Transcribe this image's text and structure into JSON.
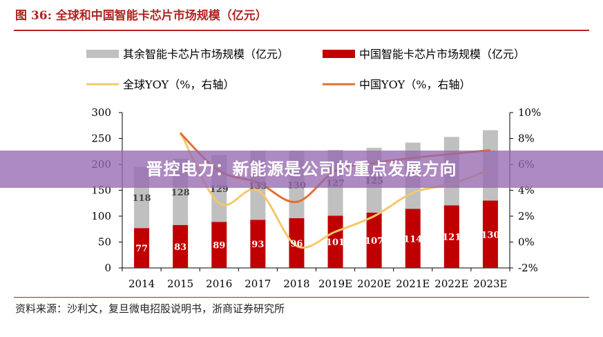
{
  "title": "图 36:  全球和中国智能卡芯片市场规模（亿元）",
  "source": "资料来源：沙利文，复旦微电招股说明书，浙商证券研究所",
  "banner": "晋控电力：新能源是公司的重点发展方向",
  "colors": {
    "title": "#b22222",
    "other_bar": "#c0c0c0",
    "china_bar": "#c00000",
    "global_yoy": "#f4c86a",
    "china_yoy": "#e0702c",
    "banner": "#9669af"
  },
  "chart_data": {
    "type": "bar",
    "stacked": true,
    "categories": [
      "2014",
      "2015",
      "2016",
      "2017",
      "2018",
      "2019E",
      "2020E",
      "2021E",
      "2022E",
      "2023E"
    ],
    "series": [
      {
        "name": "中国智能卡芯片市场规模（亿元）",
        "type": "bar",
        "axis": "left",
        "values": [
          77,
          83,
          89,
          93,
          96,
          101,
          107,
          114,
          121,
          130
        ]
      },
      {
        "name": "其余智能卡芯片市场规模（亿元）",
        "type": "bar",
        "axis": "left",
        "values": [
          118,
          128,
          129,
          133,
          130,
          127,
          125,
          128,
          132,
          136
        ]
      },
      {
        "name": "全球YOY（%，右轴）",
        "type": "line",
        "axis": "right",
        "values": [
          null,
          8.5,
          3.0,
          4.0,
          -0.3,
          0.8,
          2.0,
          3.8,
          4.5,
          5.6
        ]
      },
      {
        "name": "中国YOY（%，右轴）",
        "type": "line",
        "axis": "right",
        "values": [
          null,
          8.4,
          5.5,
          4.6,
          3.1,
          5.5,
          6.1,
          6.5,
          6.8,
          7.1
        ]
      }
    ],
    "bar_labels_shown": {
      "中国智能卡芯片市场规模（亿元）": [
        "77",
        "83",
        "89",
        "93",
        "96",
        "101",
        "107",
        "114",
        "121",
        "130"
      ],
      "其余智能卡芯片市场规模（亿元）": [
        "118",
        "128",
        "129",
        "133",
        "130",
        "127",
        "125",
        "",
        "",
        ""
      ]
    },
    "y_left": {
      "range": [
        0,
        300
      ],
      "ticks": [
        "0",
        "50",
        "100",
        "150",
        "200",
        "250",
        "300"
      ]
    },
    "y_right": {
      "range": [
        -2,
        10
      ],
      "ticks": [
        "-2%",
        "0%",
        "2%",
        "4%",
        "6%",
        "8%",
        "10%"
      ]
    },
    "legend_position": "top",
    "grid": false
  }
}
